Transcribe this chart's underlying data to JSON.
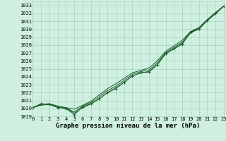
{
  "hours": [
    0,
    1,
    2,
    3,
    4,
    5,
    6,
    7,
    8,
    9,
    10,
    11,
    12,
    13,
    14,
    15,
    16,
    17,
    18,
    19,
    20,
    21,
    22,
    23
  ],
  "main_values": [
    1020.1,
    1020.6,
    1020.5,
    1020.1,
    1020.0,
    1019.2,
    1020.2,
    1020.6,
    1021.2,
    1022.0,
    1022.5,
    1023.3,
    1024.1,
    1024.5,
    1024.6,
    1025.5,
    1026.9,
    1027.5,
    1028.1,
    1029.6,
    1030.0,
    1031.1,
    1032.0,
    1032.9
  ],
  "line_upper": [
    1020.1,
    1020.5,
    1020.6,
    1020.3,
    1020.1,
    1019.9,
    1020.4,
    1020.9,
    1021.7,
    1022.5,
    1023.1,
    1023.8,
    1024.5,
    1024.8,
    1025.1,
    1026.0,
    1027.2,
    1027.9,
    1028.6,
    1029.7,
    1030.2,
    1031.2,
    1032.1,
    1032.9
  ],
  "line_mid": [
    1020.1,
    1020.5,
    1020.55,
    1020.2,
    1020.05,
    1019.55,
    1020.3,
    1020.75,
    1021.45,
    1022.25,
    1022.8,
    1023.55,
    1024.3,
    1024.65,
    1024.85,
    1025.75,
    1027.05,
    1027.7,
    1028.35,
    1029.65,
    1030.1,
    1031.15,
    1032.05,
    1032.9
  ],
  "line_lower": [
    1020.1,
    1020.4,
    1020.5,
    1020.2,
    1020.0,
    1019.4,
    1020.1,
    1020.55,
    1021.2,
    1022.0,
    1022.6,
    1023.3,
    1024.1,
    1024.5,
    1024.65,
    1025.55,
    1026.9,
    1027.55,
    1028.2,
    1029.55,
    1030.0,
    1031.05,
    1031.95,
    1032.9
  ],
  "ylim": [
    1019.0,
    1033.5
  ],
  "yticks": [
    1019,
    1020,
    1021,
    1022,
    1023,
    1024,
    1025,
    1026,
    1027,
    1028,
    1029,
    1030,
    1031,
    1032,
    1033
  ],
  "xlim": [
    0,
    23
  ],
  "xticks": [
    0,
    1,
    2,
    3,
    4,
    5,
    6,
    7,
    8,
    9,
    10,
    11,
    12,
    13,
    14,
    15,
    16,
    17,
    18,
    19,
    20,
    21,
    22,
    23
  ],
  "bg_color": "#cff0e0",
  "grid_color": "#a8d4bc",
  "line_color": "#1a5c28",
  "xlabel": "Graphe pression niveau de la mer (hPa)",
  "xlabel_fontsize": 6.5,
  "tick_fontsize": 5.0,
  "marker_size": 2.5,
  "line_width": 0.7
}
